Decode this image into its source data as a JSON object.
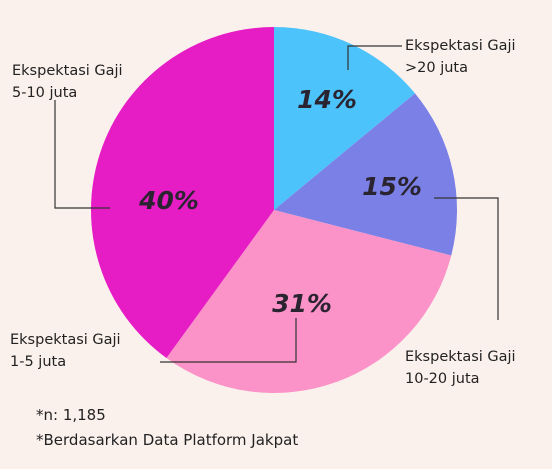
{
  "chart_data": {
    "type": "pie",
    "slices": [
      {
        "label": "Ekspektasi Gaji >20 juta",
        "label_lines": [
          "Ekspektasi Gaji",
          ">20 juta"
        ],
        "value": 14,
        "value_label": "14%",
        "color": "#4cc3fb"
      },
      {
        "label": "Ekspektasi Gaji 10-20 juta",
        "label_lines": [
          "Ekspektasi Gaji",
          "10-20 juta"
        ],
        "value": 15,
        "value_label": "15%",
        "color": "#7b80e7"
      },
      {
        "label": "Ekspektasi Gaji 1-5 juta",
        "label_lines": [
          "Ekspektasi Gaji",
          "1-5 juta"
        ],
        "value": 31,
        "value_label": "31%",
        "color": "#fb93c8"
      },
      {
        "label": "Ekspektasi Gaji 5-10 juta",
        "label_lines": [
          "Ekspektasi Gaji",
          "5-10 juta"
        ],
        "value": 40,
        "value_label": "40%",
        "color": "#e61cc4"
      }
    ],
    "start_angle": "12 o'clock",
    "direction": "clockwise",
    "legend": "none (leader-line callouts)"
  },
  "notes": {
    "n": "*n: 1,185",
    "source": "*Berdasarkan Data Platform Jakpat"
  },
  "colors": {
    "background": "#fbf1ec",
    "text": "#222222",
    "leader_line": "#333333"
  }
}
